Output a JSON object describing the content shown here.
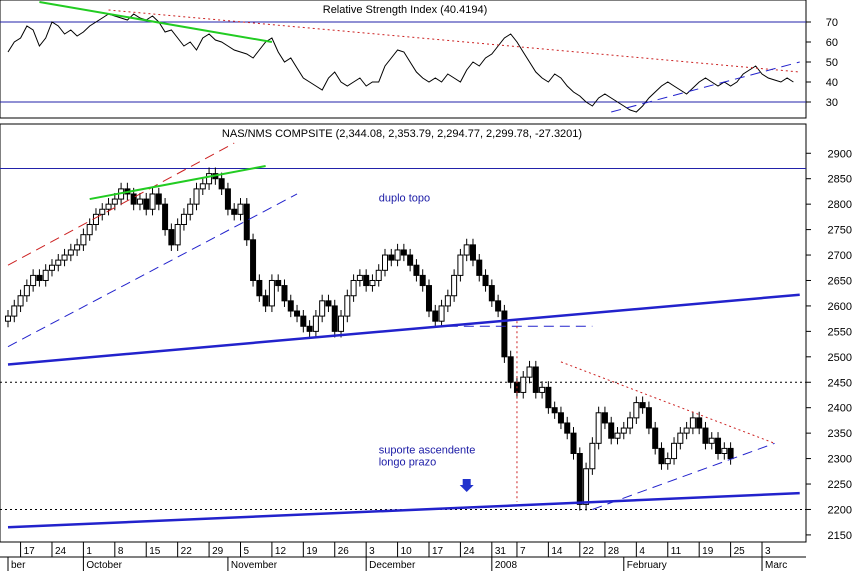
{
  "chart_data": [
    {
      "type": "line",
      "title": "Relative Strength Index (40.4194)",
      "ylim": [
        24,
        78
      ],
      "yticks": [
        30,
        40,
        50,
        60,
        70
      ],
      "hlines": [
        30,
        70
      ],
      "series": [
        {
          "values": [
            55,
            60,
            62,
            68,
            66,
            58,
            62,
            70,
            68,
            64,
            66,
            63,
            65,
            68,
            70,
            72,
            74,
            73,
            72,
            71,
            74,
            72,
            71,
            73,
            70,
            65,
            66,
            62,
            58,
            60,
            56,
            62,
            64,
            61,
            60,
            58,
            56,
            55,
            54,
            52,
            56,
            60,
            62,
            55,
            50,
            52,
            47,
            42,
            40,
            38,
            36,
            42,
            45,
            40,
            38,
            40,
            42,
            38,
            40,
            40,
            48,
            52,
            56,
            55,
            50,
            45,
            42,
            40,
            42,
            40,
            44,
            42,
            40,
            46,
            50,
            48,
            52,
            54,
            58,
            62,
            64,
            60,
            55,
            50,
            45,
            42,
            40,
            44,
            42,
            38,
            35,
            33,
            30,
            28,
            32,
            34,
            32,
            30,
            28,
            26,
            25,
            28,
            32,
            35,
            38,
            40,
            38,
            36,
            34,
            37,
            40,
            42,
            40,
            38,
            40,
            38,
            40,
            44,
            46,
            48,
            44,
            42,
            41,
            40,
            42,
            40
          ]
        }
      ],
      "trendlines": [
        {
          "color": "#22cc22",
          "from": [
            5,
            80
          ],
          "to": [
            42,
            60
          ]
        },
        {
          "color": "#cc2222",
          "style": "dotted",
          "from": [
            16,
            76
          ],
          "to": [
            126,
            45
          ]
        },
        {
          "color": "#2222cc",
          "style": "dashed",
          "from": [
            96,
            25
          ],
          "to": [
            126,
            50
          ]
        }
      ]
    },
    {
      "type": "candlestick",
      "title": "NAS/NMS COMPSITE (2,344.08, 2,353.79, 2,294.77, 2,299.78, -27.3201)",
      "ylim": [
        2140,
        2930
      ],
      "yticks": [
        2150,
        2200,
        2250,
        2300,
        2350,
        2400,
        2450,
        2500,
        2550,
        2600,
        2650,
        2700,
        2750,
        2800,
        2850,
        2900
      ],
      "x_labels": [
        {
          "i": 2,
          "label": "17"
        },
        {
          "i": 7,
          "label": "24"
        },
        {
          "i": 12,
          "label": "1"
        },
        {
          "i": 17,
          "label": "8"
        },
        {
          "i": 22,
          "label": "15"
        },
        {
          "i": 27,
          "label": "22"
        },
        {
          "i": 32,
          "label": "29"
        },
        {
          "i": 37,
          "label": "5"
        },
        {
          "i": 42,
          "label": "12"
        },
        {
          "i": 47,
          "label": "19"
        },
        {
          "i": 52,
          "label": "26"
        },
        {
          "i": 57,
          "label": "3"
        },
        {
          "i": 62,
          "label": "10"
        },
        {
          "i": 67,
          "label": "17"
        },
        {
          "i": 72,
          "label": "24"
        },
        {
          "i": 77,
          "label": "31"
        },
        {
          "i": 81,
          "label": "7"
        },
        {
          "i": 86,
          "label": "14"
        },
        {
          "i": 91,
          "label": "22"
        },
        {
          "i": 95,
          "label": "28"
        },
        {
          "i": 100,
          "label": "4"
        },
        {
          "i": 105,
          "label": "11"
        },
        {
          "i": 110,
          "label": "19"
        },
        {
          "i": 115,
          "label": "25"
        },
        {
          "i": 120,
          "label": "3"
        }
      ],
      "month_labels": [
        {
          "i": 0,
          "label": "ber"
        },
        {
          "i": 12,
          "label": "October"
        },
        {
          "i": 35,
          "label": "November"
        },
        {
          "i": 57,
          "label": "December"
        },
        {
          "i": 77,
          "label": "2008"
        },
        {
          "i": 98,
          "label": "February"
        },
        {
          "i": 120,
          "label": "Marc"
        }
      ],
      "closes": [
        2580,
        2600,
        2620,
        2640,
        2660,
        2650,
        2670,
        2680,
        2690,
        2700,
        2710,
        2720,
        2740,
        2760,
        2780,
        2790,
        2800,
        2810,
        2830,
        2820,
        2800,
        2810,
        2790,
        2820,
        2800,
        2750,
        2720,
        2760,
        2780,
        2800,
        2830,
        2840,
        2860,
        2850,
        2830,
        2790,
        2780,
        2800,
        2730,
        2650,
        2620,
        2600,
        2650,
        2640,
        2610,
        2590,
        2580,
        2560,
        2550,
        2580,
        2610,
        2600,
        2550,
        2580,
        2620,
        2650,
        2660,
        2640,
        2650,
        2670,
        2700,
        2690,
        2710,
        2700,
        2680,
        2660,
        2640,
        2590,
        2570,
        2600,
        2620,
        2660,
        2700,
        2720,
        2690,
        2660,
        2640,
        2610,
        2590,
        2500,
        2450,
        2430,
        2460,
        2480,
        2430,
        2440,
        2400,
        2390,
        2370,
        2350,
        2310,
        2210,
        2280,
        2330,
        2390,
        2370,
        2340,
        2350,
        2360,
        2380,
        2410,
        2400,
        2360,
        2320,
        2290,
        2300,
        2330,
        2350,
        2360,
        2380,
        2360,
        2330,
        2340,
        2310,
        2320,
        2300
      ],
      "hlines": [
        {
          "y": 2450,
          "style": "dotted",
          "color": "#000000"
        },
        {
          "y": 2200,
          "style": "dotted",
          "color": "#000000"
        },
        {
          "y": 2870,
          "style": "solid",
          "color": "#2222aa"
        }
      ],
      "trendlines": [
        {
          "color": "#2222cc",
          "width": 2.5,
          "from": [
            0,
            2485
          ],
          "to": [
            126,
            2622
          ]
        },
        {
          "color": "#2222cc",
          "width": 2.5,
          "from": [
            0,
            2165
          ],
          "to": [
            126,
            2232
          ]
        },
        {
          "color": "#cc2222",
          "style": "dashed",
          "from": [
            0,
            2680
          ],
          "to": [
            36,
            2920
          ]
        },
        {
          "color": "#2222cc",
          "style": "dashed",
          "from": [
            0,
            2520
          ],
          "to": [
            46,
            2820
          ]
        },
        {
          "color": "#22cc22",
          "width": 2,
          "from": [
            13,
            2810
          ],
          "to": [
            41,
            2875
          ]
        },
        {
          "color": "#cc2222",
          "style": "dotted",
          "from": [
            88,
            2490
          ],
          "to": [
            122,
            2330
          ]
        },
        {
          "color": "#2222cc",
          "style": "dashed",
          "from": [
            93,
            2200
          ],
          "to": [
            122,
            2330
          ]
        },
        {
          "color": "#2222cc",
          "style": "dashed",
          "from": [
            70,
            2560
          ],
          "to": [
            93,
            2560
          ]
        },
        {
          "color": "#cc2222",
          "style": "dotted",
          "from": [
            81,
            2570
          ],
          "to": [
            81,
            2215
          ]
        }
      ],
      "annotations": [
        {
          "text": "duplo topo",
          "at": [
            59,
            2805
          ]
        },
        {
          "text": "suporte ascendente",
          "at": [
            59,
            2310
          ]
        },
        {
          "text": "longo prazo",
          "at": [
            59,
            2286
          ]
        }
      ],
      "arrow": {
        "at": [
          73,
          2248
        ]
      }
    }
  ]
}
